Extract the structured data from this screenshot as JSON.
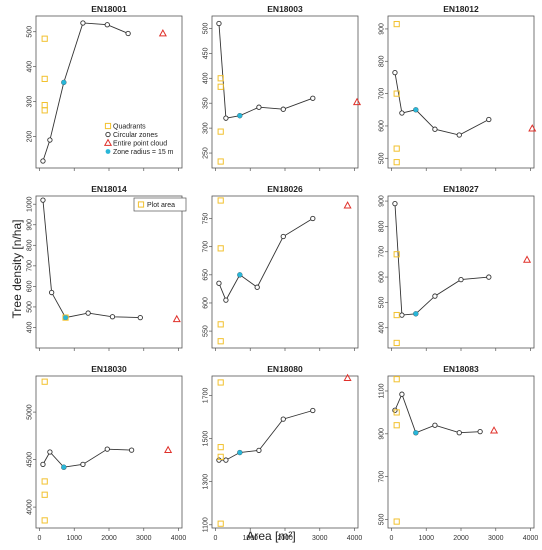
{
  "figure": {
    "ylabel": "Tree density [n/ha]",
    "xlabel": "Area [m²]"
  },
  "colors": {
    "quadrants": "#f2c12e",
    "circular": "#333333",
    "zone15": "#29b6d8",
    "cloud": "#e0302a",
    "plot_area": "#f2c12e",
    "line": "#333333"
  },
  "legend_main": {
    "items": [
      {
        "label": "Quadrants",
        "marker": "square",
        "color": "#f2c12e"
      },
      {
        "label": "Circular zones",
        "marker": "circle",
        "color": "#333333"
      },
      {
        "label": "Entire point cloud",
        "marker": "triangle",
        "color": "#e0302a"
      },
      {
        "label": "Zone radius = 15 m",
        "marker": "dot",
        "color": "#29b6d8"
      }
    ]
  },
  "legend_plot": {
    "items": [
      {
        "label": "Plot area",
        "marker": "square",
        "color": "#f2c12e"
      }
    ]
  },
  "chart_data": [
    {
      "type": "scatter",
      "title": "EN18001",
      "xlim": [
        -100,
        4100
      ],
      "xticks": [
        0,
        1000,
        2000,
        3000,
        4000
      ],
      "ylim": [
        110,
        545
      ],
      "yticks": [
        200,
        300,
        400,
        500
      ],
      "circular": {
        "x": [
          100,
          300,
          700,
          1250,
          1950,
          2550
        ],
        "y": [
          130,
          190,
          355,
          525,
          520,
          495
        ]
      },
      "zone15": {
        "x": 700,
        "y": 355
      },
      "quadrants": {
        "x": [
          150,
          150,
          150,
          150
        ],
        "y": [
          480,
          365,
          290,
          275
        ]
      },
      "cloud": {
        "x": 3550,
        "y": 495
      },
      "plot_area": null
    },
    {
      "type": "scatter",
      "title": "EN18003",
      "xlim": [
        -100,
        4100
      ],
      "xticks": [
        0,
        1000,
        2000,
        3000,
        4000
      ],
      "ylim": [
        220,
        525
      ],
      "yticks": [
        250,
        300,
        350,
        400,
        450,
        500
      ],
      "circular": {
        "x": [
          100,
          300,
          700,
          1250,
          1950,
          2800
        ],
        "y": [
          510,
          320,
          325,
          342,
          338,
          360
        ]
      },
      "zone15": {
        "x": 700,
        "y": 325
      },
      "quadrants": {
        "x": [
          150,
          150,
          150,
          150
        ],
        "y": [
          400,
          383,
          293,
          233
        ]
      },
      "cloud": {
        "x": 4100,
        "y": 352
      },
      "plot_area": null
    },
    {
      "type": "scatter",
      "title": "EN18012",
      "xlim": [
        -100,
        4100
      ],
      "xticks": [
        0,
        1000,
        2000,
        3000,
        4000
      ],
      "ylim": [
        470,
        940
      ],
      "yticks": [
        500,
        600,
        700,
        800,
        900
      ],
      "circular": {
        "x": [
          100,
          300,
          700,
          1250,
          1950,
          2800
        ],
        "y": [
          765,
          640,
          650,
          590,
          572,
          620
        ]
      },
      "zone15": {
        "x": 700,
        "y": 650
      },
      "quadrants": {
        "x": [
          150,
          150,
          150,
          150
        ],
        "y": [
          915,
          700,
          530,
          488
        ]
      },
      "cloud": {
        "x": 4050,
        "y": 592
      },
      "plot_area": null
    },
    {
      "type": "scatter",
      "title": "EN18014",
      "xlim": [
        -100,
        4100
      ],
      "xticks": [
        0,
        1000,
        2000,
        3000,
        4000
      ],
      "ylim": [
        300,
        1040
      ],
      "yticks": [
        400,
        500,
        600,
        700,
        800,
        900,
        1000
      ],
      "circular": {
        "x": [
          100,
          350,
          750,
          1400,
          2100,
          2900
        ],
        "y": [
          1020,
          570,
          448,
          470,
          452,
          448
        ]
      },
      "zone15": {
        "x": 750,
        "y": 448
      },
      "quadrants": null,
      "cloud": {
        "x": 3950,
        "y": 440
      },
      "plot_area": {
        "x": 750,
        "y": 448
      }
    },
    {
      "type": "scatter",
      "title": "EN18026",
      "xlim": [
        -100,
        4100
      ],
      "xticks": [
        0,
        1000,
        2000,
        3000,
        4000
      ],
      "ylim": [
        520,
        790
      ],
      "yticks": [
        550,
        600,
        650,
        700,
        750
      ],
      "circular": {
        "x": [
          100,
          300,
          700,
          1200,
          1950,
          2800
        ],
        "y": [
          635,
          605,
          650,
          628,
          718,
          750
        ]
      },
      "zone15": {
        "x": 700,
        "y": 650
      },
      "quadrants": {
        "x": [
          150,
          150,
          150,
          150
        ],
        "y": [
          782,
          697,
          562,
          532
        ]
      },
      "cloud": {
        "x": 3800,
        "y": 773
      },
      "plot_area": null
    },
    {
      "type": "scatter",
      "title": "EN18027",
      "xlim": [
        -100,
        4100
      ],
      "xticks": [
        0,
        1000,
        2000,
        3000,
        4000
      ],
      "ylim": [
        320,
        920
      ],
      "yticks": [
        400,
        500,
        600,
        700,
        800,
        900
      ],
      "circular": {
        "x": [
          100,
          300,
          700,
          1250,
          2000,
          2800
        ],
        "y": [
          890,
          450,
          455,
          525,
          590,
          600
        ]
      },
      "zone15": {
        "x": 700,
        "y": 455
      },
      "quadrants": {
        "x": [
          150,
          150,
          150
        ],
        "y": [
          690,
          450,
          340
        ]
      },
      "cloud": {
        "x": 3900,
        "y": 668
      },
      "plot_area": null
    },
    {
      "type": "scatter",
      "title": "EN18030",
      "xlim": [
        -100,
        4100
      ],
      "xticks": [
        0,
        1000,
        2000,
        3000,
        4000
      ],
      "ylim": [
        3780,
        5380
      ],
      "yticks": [
        4000,
        4500,
        5000
      ],
      "circular": {
        "x": [
          100,
          300,
          700,
          1250,
          1950,
          2650
        ],
        "y": [
          4450,
          4580,
          4420,
          4450,
          4610,
          4600
        ]
      },
      "zone15": {
        "x": 700,
        "y": 4420
      },
      "quadrants": {
        "x": [
          150,
          150,
          150,
          150
        ],
        "y": [
          5320,
          4270,
          4130,
          3860
        ]
      },
      "cloud": {
        "x": 3700,
        "y": 4600
      },
      "plot_area": null
    },
    {
      "type": "scatter",
      "title": "EN18080",
      "xlim": [
        -100,
        4100
      ],
      "xticks": [
        0,
        1000,
        2000,
        3000,
        4000
      ],
      "ylim": [
        1085,
        1790
      ],
      "yticks": [
        1100,
        1300,
        1500,
        1700
      ],
      "circular": {
        "x": [
          100,
          300,
          700,
          1250,
          1950,
          2800
        ],
        "y": [
          1400,
          1400,
          1435,
          1445,
          1590,
          1630
        ]
      },
      "zone15": {
        "x": 700,
        "y": 1435
      },
      "quadrants": {
        "x": [
          150,
          150,
          150,
          150
        ],
        "y": [
          1760,
          1460,
          1415,
          1105
        ]
      },
      "cloud": {
        "x": 3800,
        "y": 1780
      },
      "plot_area": null
    },
    {
      "type": "scatter",
      "title": "EN18083",
      "xlim": [
        -100,
        4100
      ],
      "xticks": [
        0,
        1000,
        2000,
        3000,
        4000
      ],
      "ylim": [
        460,
        1170
      ],
      "yticks": [
        500,
        700,
        900,
        1100
      ],
      "circular": {
        "x": [
          100,
          300,
          700,
          1250,
          1950,
          2550
        ],
        "y": [
          1010,
          1085,
          905,
          940,
          905,
          910
        ]
      },
      "zone15": {
        "x": 700,
        "y": 905
      },
      "quadrants": {
        "x": [
          150,
          150,
          150,
          150
        ],
        "y": [
          1155,
          1000,
          940,
          490
        ]
      },
      "cloud": {
        "x": 2950,
        "y": 915
      },
      "plot_area": null
    }
  ]
}
